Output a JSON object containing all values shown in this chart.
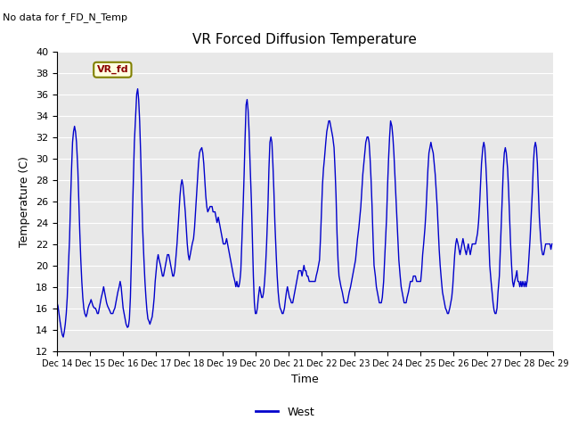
{
  "title": "VR Forced Diffusion Temperature",
  "xlabel": "Time",
  "ylabel": "Temperature (C)",
  "no_data_label": "No data for f_FD_N_Temp",
  "vr_fd_label": "VR_fd",
  "legend_label": "West",
  "line_color": "#0000cc",
  "background_color": "#e8e8e8",
  "ylim": [
    12,
    40
  ],
  "yticks": [
    12,
    14,
    16,
    18,
    20,
    22,
    24,
    26,
    28,
    30,
    32,
    34,
    36,
    38,
    40
  ],
  "xtick_labels": [
    "Dec 14",
    "Dec 15",
    "Dec 16",
    "Dec 17",
    "Dec 18",
    "Dec 19",
    "Dec 20",
    "Dec 21",
    "Dec 22",
    "Dec 23",
    "Dec 24",
    "Dec 25",
    "Dec 26",
    "Dec 27",
    "Dec 28",
    "Dec 29"
  ],
  "data_x": [
    0.0,
    0.03,
    0.06,
    0.09,
    0.13,
    0.16,
    0.19,
    0.22,
    0.25,
    0.28,
    0.31,
    0.34,
    0.38,
    0.41,
    0.44,
    0.47,
    0.5,
    0.53,
    0.56,
    0.59,
    0.63,
    0.66,
    0.69,
    0.72,
    0.75,
    0.78,
    0.81,
    0.84,
    0.88,
    0.91,
    0.94,
    0.97,
    1.0,
    1.03,
    1.06,
    1.09,
    1.13,
    1.16,
    1.19,
    1.22,
    1.25,
    1.28,
    1.31,
    1.34,
    1.38,
    1.41,
    1.44,
    1.47,
    1.5,
    1.53,
    1.56,
    1.59,
    1.63,
    1.66,
    1.69,
    1.72,
    1.75,
    1.78,
    1.81,
    1.84,
    1.88,
    1.91,
    1.94,
    1.97,
    2.0,
    2.03,
    2.06,
    2.09,
    2.13,
    2.16,
    2.19,
    2.22,
    2.25,
    2.28,
    2.31,
    2.34,
    2.38,
    2.41,
    2.44,
    2.47,
    2.5,
    2.53,
    2.56,
    2.59,
    2.63,
    2.66,
    2.69,
    2.72,
    2.75,
    2.78,
    2.81,
    2.84,
    2.88,
    2.91,
    2.94,
    2.97,
    3.0,
    3.03,
    3.06,
    3.09,
    3.13,
    3.16,
    3.19,
    3.22,
    3.25,
    3.28,
    3.31,
    3.34,
    3.38,
    3.41,
    3.44,
    3.47,
    3.5,
    3.53,
    3.56,
    3.59,
    3.63,
    3.66,
    3.69,
    3.72,
    3.75,
    3.78,
    3.81,
    3.84,
    3.88,
    3.91,
    3.94,
    3.97,
    4.0,
    4.03,
    4.06,
    4.09,
    4.13,
    4.16,
    4.19,
    4.22,
    4.25,
    4.28,
    4.31,
    4.34,
    4.38,
    4.41,
    4.44,
    4.47,
    4.5,
    4.53,
    4.56,
    4.59,
    4.63,
    4.66,
    4.69,
    4.72,
    4.75,
    4.78,
    4.81,
    4.84,
    4.88,
    4.91,
    4.94,
    4.97,
    5.0,
    5.03,
    5.06,
    5.09,
    5.13,
    5.16,
    5.19,
    5.22,
    5.25,
    5.28,
    5.31,
    5.34,
    5.38,
    5.41,
    5.44,
    5.47,
    5.5,
    5.53,
    5.56,
    5.59,
    5.63,
    5.66,
    5.69,
    5.72,
    5.75,
    5.78,
    5.81,
    5.84,
    5.88,
    5.91,
    5.94,
    5.97,
    6.0,
    6.03,
    6.06,
    6.09,
    6.13,
    6.16,
    6.19,
    6.22,
    6.25,
    6.28,
    6.31,
    6.34,
    6.38,
    6.41,
    6.44,
    6.47,
    6.5,
    6.53,
    6.56,
    6.59,
    6.63,
    6.66,
    6.69,
    6.72,
    6.75,
    6.78,
    6.81,
    6.84,
    6.88,
    6.91,
    6.94,
    6.97,
    7.0,
    7.03,
    7.06,
    7.09,
    7.13,
    7.16,
    7.19,
    7.22,
    7.25,
    7.28,
    7.31,
    7.34,
    7.38,
    7.41,
    7.44,
    7.47,
    7.5,
    7.53,
    7.56,
    7.59,
    7.63,
    7.66,
    7.69,
    7.72,
    7.75,
    7.78,
    7.81,
    7.84,
    7.88,
    7.91,
    7.94,
    7.97,
    8.0,
    8.03,
    8.06,
    8.09,
    8.13,
    8.16,
    8.19,
    8.22,
    8.25,
    8.28,
    8.31,
    8.34,
    8.38,
    8.41,
    8.44,
    8.47,
    8.5,
    8.53,
    8.56,
    8.59,
    8.63,
    8.66,
    8.69,
    8.72,
    8.75,
    8.78,
    8.81,
    8.84,
    8.88,
    8.91,
    8.94,
    8.97,
    9.0,
    9.03,
    9.06,
    9.09,
    9.13,
    9.16,
    9.19,
    9.22,
    9.25,
    9.28,
    9.31,
    9.34,
    9.38,
    9.41,
    9.44,
    9.47,
    9.5,
    9.53,
    9.56,
    9.59,
    9.63,
    9.66,
    9.69,
    9.72,
    9.75,
    9.78,
    9.81,
    9.84,
    9.88,
    9.91,
    9.94,
    9.97,
    10.0,
    10.03,
    10.06,
    10.09,
    10.13,
    10.16,
    10.19,
    10.22,
    10.25,
    10.28,
    10.31,
    10.34,
    10.38,
    10.41,
    10.44,
    10.47,
    10.5,
    10.53,
    10.56,
    10.59,
    10.63,
    10.66,
    10.69,
    10.72,
    10.75,
    10.78,
    10.81,
    10.84,
    10.88,
    10.91,
    10.94,
    10.97,
    11.0,
    11.03,
    11.06,
    11.09,
    11.13,
    11.16,
    11.19,
    11.22,
    11.25,
    11.28,
    11.31,
    11.34,
    11.38,
    11.41,
    11.44,
    11.47,
    11.5,
    11.53,
    11.56,
    11.59,
    11.63,
    11.66,
    11.69,
    11.72,
    11.75,
    11.78,
    11.81,
    11.84,
    11.88,
    11.91,
    11.94,
    11.97,
    12.0,
    12.03,
    12.06,
    12.09,
    12.13,
    12.16,
    12.19,
    12.22,
    12.25,
    12.28,
    12.31,
    12.34,
    12.38,
    12.41,
    12.44,
    12.47,
    12.5,
    12.53,
    12.56,
    12.59,
    12.63,
    12.66,
    12.69,
    12.72,
    12.75,
    12.78,
    12.81,
    12.84,
    12.88,
    12.91,
    12.94,
    12.97,
    13.0,
    13.03,
    13.06,
    13.09,
    13.13,
    13.16,
    13.19,
    13.22,
    13.25,
    13.28,
    13.31,
    13.34,
    13.38,
    13.41,
    13.44,
    13.47,
    13.5,
    13.53,
    13.56,
    13.59,
    13.63,
    13.66,
    13.69,
    13.72,
    13.75,
    13.78,
    13.81,
    13.84,
    13.88,
    13.91,
    13.94,
    13.97,
    14.0,
    14.03,
    14.06,
    14.09,
    14.13,
    14.16,
    14.19,
    14.22,
    14.25,
    14.28,
    14.31,
    14.34,
    14.38,
    14.41,
    14.44,
    14.47,
    14.5,
    14.53,
    14.56,
    14.59,
    14.63,
    14.66,
    14.69,
    14.72,
    14.75,
    14.78,
    14.81,
    14.84,
    14.88,
    14.91,
    14.94,
    14.97
  ],
  "data_y": [
    16.5,
    16.2,
    15.5,
    14.8,
    14.0,
    13.5,
    13.3,
    13.8,
    14.5,
    15.5,
    17.0,
    19.5,
    22.5,
    26.0,
    29.0,
    31.5,
    32.5,
    33.0,
    32.5,
    31.5,
    29.0,
    26.0,
    23.0,
    20.5,
    18.5,
    17.0,
    16.0,
    15.5,
    15.2,
    15.5,
    16.0,
    16.3,
    16.5,
    16.8,
    16.5,
    16.2,
    16.0,
    16.0,
    15.8,
    15.5,
    15.5,
    16.0,
    16.5,
    17.0,
    17.5,
    18.0,
    17.5,
    17.0,
    16.5,
    16.2,
    16.0,
    15.8,
    15.5,
    15.5,
    15.5,
    15.8,
    16.0,
    16.5,
    17.0,
    17.5,
    18.0,
    18.5,
    18.0,
    17.0,
    16.0,
    15.5,
    15.0,
    14.5,
    14.2,
    14.3,
    15.0,
    17.0,
    20.5,
    24.5,
    28.0,
    31.5,
    34.0,
    36.0,
    36.5,
    35.5,
    33.5,
    30.5,
    27.0,
    23.5,
    20.5,
    18.5,
    17.0,
    15.8,
    15.0,
    14.8,
    14.5,
    14.8,
    15.2,
    16.0,
    17.0,
    18.5,
    19.5,
    20.5,
    21.0,
    20.5,
    20.0,
    19.5,
    19.0,
    19.0,
    19.5,
    20.0,
    20.5,
    21.0,
    21.0,
    20.5,
    20.0,
    19.5,
    19.0,
    19.0,
    19.5,
    20.5,
    22.0,
    23.5,
    25.0,
    26.5,
    27.5,
    28.0,
    27.5,
    26.5,
    25.0,
    23.5,
    22.0,
    21.0,
    20.5,
    21.0,
    21.5,
    22.0,
    22.5,
    23.5,
    25.0,
    26.5,
    28.0,
    29.5,
    30.5,
    30.8,
    31.0,
    30.5,
    29.5,
    28.0,
    26.5,
    25.5,
    25.0,
    25.2,
    25.5,
    25.5,
    25.5,
    25.0,
    25.0,
    25.0,
    24.5,
    24.0,
    24.5,
    24.0,
    23.5,
    23.0,
    22.5,
    22.0,
    22.0,
    22.0,
    22.5,
    22.0,
    21.5,
    21.0,
    20.5,
    20.0,
    19.5,
    19.0,
    18.5,
    18.0,
    18.5,
    18.0,
    18.0,
    18.5,
    19.5,
    22.0,
    25.5,
    28.5,
    32.0,
    35.0,
    35.5,
    34.5,
    32.5,
    29.5,
    26.0,
    22.5,
    19.0,
    16.5,
    15.5,
    15.5,
    16.0,
    17.0,
    18.0,
    17.5,
    17.0,
    17.0,
    17.5,
    18.5,
    20.0,
    22.0,
    25.5,
    29.0,
    31.5,
    32.0,
    31.5,
    29.5,
    27.0,
    24.0,
    21.0,
    19.0,
    17.5,
    16.5,
    16.0,
    15.8,
    15.5,
    15.5,
    16.0,
    16.8,
    17.5,
    18.0,
    17.5,
    17.0,
    16.8,
    16.5,
    16.5,
    17.0,
    17.5,
    18.0,
    18.5,
    19.0,
    19.5,
    19.5,
    19.5,
    19.0,
    19.5,
    20.0,
    19.5,
    19.5,
    19.0,
    19.0,
    18.5,
    18.5,
    18.5,
    18.5,
    18.5,
    18.5,
    18.5,
    19.0,
    19.5,
    20.0,
    20.5,
    22.5,
    25.0,
    27.5,
    29.0,
    30.0,
    31.5,
    32.5,
    33.0,
    33.5,
    33.5,
    33.0,
    32.5,
    32.0,
    31.0,
    29.0,
    26.5,
    23.0,
    20.5,
    19.0,
    18.5,
    18.0,
    17.5,
    17.0,
    16.5,
    16.5,
    16.5,
    16.5,
    17.0,
    17.5,
    18.0,
    18.5,
    19.0,
    19.5,
    20.0,
    20.5,
    21.5,
    22.5,
    23.5,
    24.5,
    25.5,
    27.0,
    28.5,
    29.5,
    30.5,
    31.5,
    32.0,
    32.0,
    31.5,
    30.0,
    28.0,
    25.5,
    22.5,
    20.0,
    19.0,
    18.0,
    17.5,
    17.0,
    16.5,
    16.5,
    16.5,
    17.0,
    18.5,
    20.5,
    22.5,
    24.5,
    27.5,
    30.0,
    32.0,
    33.5,
    33.0,
    32.0,
    30.5,
    28.5,
    26.5,
    24.5,
    22.5,
    20.5,
    19.0,
    18.0,
    17.5,
    17.0,
    16.5,
    16.5,
    16.5,
    17.0,
    17.5,
    18.0,
    18.5,
    18.5,
    18.5,
    19.0,
    19.0,
    19.0,
    18.5,
    18.5,
    18.5,
    18.5,
    18.5,
    19.5,
    21.0,
    22.0,
    23.5,
    25.0,
    27.0,
    29.0,
    30.5,
    31.0,
    31.5,
    31.0,
    30.5,
    29.5,
    28.5,
    27.0,
    25.5,
    23.5,
    21.5,
    20.0,
    18.5,
    17.5,
    17.0,
    16.5,
    16.0,
    15.8,
    15.5,
    15.5,
    16.0,
    16.5,
    17.0,
    18.0,
    19.5,
    21.0,
    22.0,
    22.5,
    22.0,
    21.5,
    21.0,
    21.5,
    22.0,
    22.5,
    22.0,
    21.5,
    21.0,
    21.5,
    22.0,
    21.5,
    21.0,
    21.5,
    22.0,
    22.0,
    22.0,
    22.0,
    22.5,
    23.0,
    24.0,
    25.5,
    27.5,
    29.5,
    31.0,
    31.5,
    31.0,
    29.5,
    27.5,
    25.0,
    22.5,
    20.0,
    18.5,
    17.5,
    16.5,
    15.8,
    15.5,
    15.5,
    16.0,
    17.5,
    19.0,
    21.5,
    24.0,
    26.5,
    29.0,
    30.5,
    31.0,
    30.5,
    29.0,
    27.0,
    24.5,
    22.0,
    20.0,
    18.5,
    18.0,
    18.5,
    19.0,
    19.5,
    18.5,
    18.5,
    18.0,
    18.5,
    18.0,
    18.5,
    18.0,
    18.5,
    18.0,
    18.5,
    19.5,
    21.0,
    22.5,
    24.5,
    27.0,
    29.5,
    31.0,
    31.5,
    31.0,
    29.5,
    27.0,
    24.5,
    22.5,
    21.5,
    21.0,
    21.0,
    21.5,
    22.0,
    22.0,
    22.0,
    22.0,
    22.0,
    21.5,
    22.0
  ]
}
